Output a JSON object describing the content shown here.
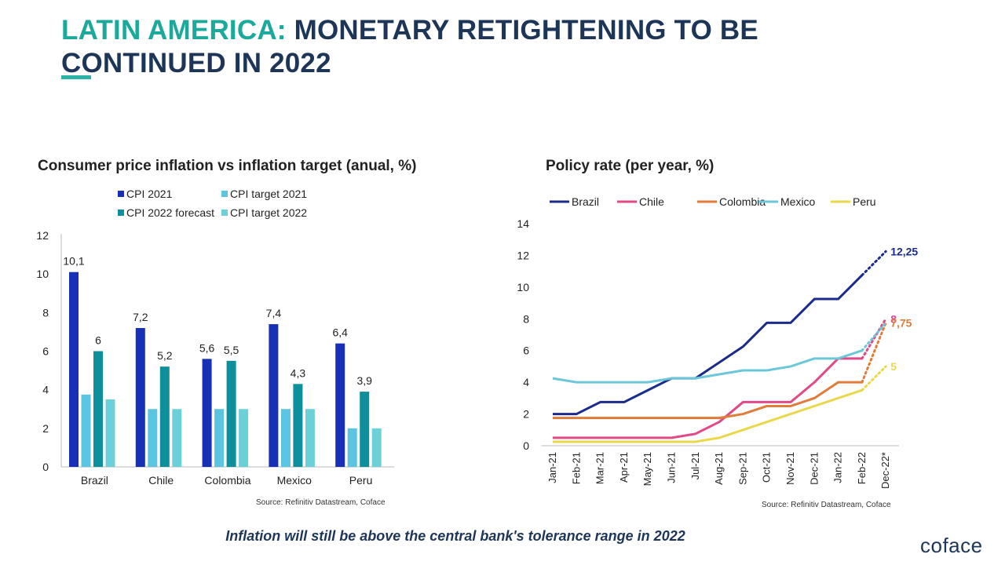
{
  "header": {
    "title_accent": "LATIN AMERICA:",
    "title_rest": "MONETARY RETIGHTENING TO BE CONTINUED IN 2022"
  },
  "left_chart": {
    "title": "Consumer price inflation vs inflation target (anual, %)",
    "source": "Source: Refinitiv Datastream, Coface"
  },
  "right_chart": {
    "title": "Policy rate (per year, %)",
    "source": "Source: Refinitiv Datastream, Coface"
  },
  "footer": {
    "note": "Inflation will still be above the central bank's tolerance range in 2022",
    "logo": "coface"
  },
  "colors": {
    "cpi_2021": "#1730b5",
    "cpi_target_2021": "#5bc4e0",
    "cpi_2022": "#0e8f9c",
    "cpi_target_2022": "#6cd0d8",
    "brazil": "#1a2b8c",
    "chile": "#e04a86",
    "colombia": "#e07b39",
    "mexico": "#6cc8d8",
    "peru": "#e8d84a"
  },
  "chart_data": [
    {
      "type": "bar",
      "categories": [
        "Brazil",
        "Chile",
        "Colombia",
        "Mexico",
        "Peru"
      ],
      "ylim": [
        0,
        12
      ],
      "yticks": [
        "0",
        "2",
        "4",
        "6",
        "8",
        "10",
        "12"
      ],
      "legend": "top",
      "grid": false,
      "series": [
        {
          "name": "CPI 2021",
          "values": [
            10.1,
            7.2,
            5.6,
            7.4,
            6.4
          ],
          "labels": [
            "10,1",
            "7,2",
            "5,6",
            "7,4",
            "6,4"
          ]
        },
        {
          "name": "CPI target 2021",
          "values": [
            3.75,
            3.0,
            3.0,
            3.0,
            2.0
          ],
          "labels": [
            "",
            "",
            "",
            "",
            ""
          ]
        },
        {
          "name": "CPI 2022 forecast",
          "values": [
            6.0,
            5.2,
            5.5,
            4.3,
            3.9
          ],
          "labels": [
            "6",
            "5,2",
            "5,5",
            "4,3",
            "3,9"
          ]
        },
        {
          "name": "CPI target 2022",
          "values": [
            3.5,
            3.0,
            3.0,
            3.0,
            2.0
          ],
          "labels": [
            "",
            "",
            "",
            "",
            ""
          ]
        }
      ]
    },
    {
      "type": "line",
      "x": [
        "Jan-21",
        "Feb-21",
        "Mar-21",
        "Apr-21",
        "May-21",
        "Jun-21",
        "Jul-21",
        "Aug-21",
        "Sep-21",
        "Oct-21",
        "Nov-21",
        "Dec-21",
        "Jan-22",
        "Feb-22",
        "Dec-22*"
      ],
      "ylim": [
        0,
        14
      ],
      "yticks": [
        "0",
        "2",
        "4",
        "6",
        "8",
        "10",
        "12",
        "14"
      ],
      "legend": "top",
      "grid": false,
      "series": [
        {
          "name": "Brazil",
          "values": [
            2.0,
            2.0,
            2.75,
            2.75,
            3.5,
            4.25,
            4.25,
            5.25,
            6.25,
            7.75,
            7.75,
            9.25,
            9.25,
            10.75,
            12.25
          ],
          "end_label": "12,25"
        },
        {
          "name": "Chile",
          "values": [
            0.5,
            0.5,
            0.5,
            0.5,
            0.5,
            0.5,
            0.75,
            1.5,
            2.75,
            2.75,
            2.75,
            4.0,
            5.5,
            5.5,
            8.0
          ],
          "end_label": "8"
        },
        {
          "name": "Colombia",
          "values": [
            1.75,
            1.75,
            1.75,
            1.75,
            1.75,
            1.75,
            1.75,
            1.75,
            2.0,
            2.5,
            2.5,
            3.0,
            4.0,
            4.0,
            7.75
          ],
          "end_label": "7,75"
        },
        {
          "name": "Mexico",
          "values": [
            4.25,
            4.0,
            4.0,
            4.0,
            4.0,
            4.25,
            4.25,
            4.5,
            4.75,
            4.75,
            5.0,
            5.5,
            5.5,
            6.0,
            7.75
          ],
          "end_label": ""
        },
        {
          "name": "Peru",
          "values": [
            0.25,
            0.25,
            0.25,
            0.25,
            0.25,
            0.25,
            0.25,
            0.5,
            1.0,
            1.5,
            2.0,
            2.5,
            3.0,
            3.5,
            5.0
          ],
          "end_label": "5"
        }
      ]
    }
  ]
}
